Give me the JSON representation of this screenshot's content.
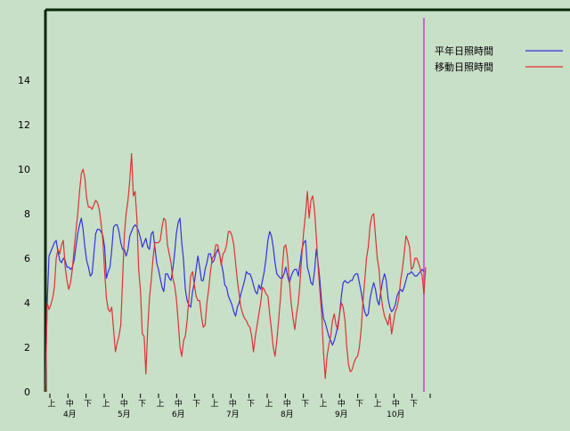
{
  "chart_data": {
    "type": "line",
    "title": "",
    "xlabel": "",
    "ylabel": "",
    "ylim": [
      0,
      16
    ],
    "yticks": [
      0,
      2,
      4,
      6,
      8,
      10,
      12,
      14
    ],
    "grid": false,
    "legend_position": "top-right",
    "xtick_labels": [
      "上",
      "中",
      "下",
      "上",
      "中",
      "下",
      "上",
      "中",
      "下",
      "上",
      "中",
      "下",
      "上",
      "中",
      "下",
      "上",
      "中",
      "下",
      "上",
      "中",
      "下"
    ],
    "month_labels": [
      "4月",
      "5月",
      "6月",
      "7月",
      "8月",
      "9月",
      "10月"
    ],
    "marker_day": 211,
    "marker_color": "#cc66cc",
    "x_count": 213,
    "series": [
      {
        "name": "平年日照時間",
        "color": "#3333dd",
        "values": [
          0.3,
          4.0,
          6.1,
          6.3,
          6.5,
          6.7,
          6.8,
          6.3,
          5.9,
          5.8,
          6.0,
          5.9,
          5.6,
          5.6,
          5.5,
          5.6,
          5.9,
          6.5,
          7.1,
          7.5,
          7.8,
          7.3,
          6.5,
          5.9,
          5.6,
          5.2,
          5.3,
          6.2,
          7.1,
          7.3,
          7.3,
          7.2,
          7.0,
          6.5,
          5.1,
          5.4,
          5.6,
          6.4,
          7.4,
          7.5,
          7.5,
          7.2,
          6.7,
          6.4,
          6.4,
          6.1,
          6.4,
          7.0,
          7.2,
          7.4,
          7.5,
          7.4,
          7.2,
          6.9,
          6.5,
          6.7,
          6.9,
          6.5,
          6.4,
          7.1,
          7.2,
          6.5,
          5.8,
          5.5,
          5.1,
          4.7,
          4.5,
          5.3,
          5.3,
          5.1,
          5.0,
          5.5,
          6.2,
          7.1,
          7.6,
          7.8,
          6.7,
          5.9,
          4.6,
          4.1,
          3.9,
          3.8,
          4.5,
          4.9,
          5.5,
          6.1,
          5.6,
          5.0,
          5.0,
          5.5,
          5.8,
          6.2,
          6.2,
          5.8,
          5.9,
          6.2,
          6.4,
          6.2,
          5.8,
          5.4,
          4.8,
          4.7,
          4.3,
          4.1,
          3.9,
          3.6,
          3.4,
          3.8,
          4.0,
          4.4,
          4.7,
          5.0,
          5.4,
          5.3,
          5.3,
          5.1,
          4.8,
          4.5,
          4.4,
          4.8,
          4.6,
          5.0,
          5.4,
          6.0,
          6.8,
          7.2,
          7.0,
          6.5,
          5.8,
          5.3,
          5.2,
          5.1,
          5.1,
          5.3,
          5.6,
          5.2,
          4.9,
          5.2,
          5.4,
          5.5,
          5.5,
          5.2,
          5.8,
          6.4,
          6.7,
          6.8,
          5.6,
          5.3,
          4.9,
          4.8,
          5.4,
          6.4,
          5.8,
          5.0,
          4.0,
          3.3,
          3.1,
          2.8,
          2.5,
          2.3,
          2.1,
          2.3,
          2.6,
          3.0,
          3.5,
          4.3,
          4.9,
          5.0,
          4.9,
          4.9,
          5.0,
          5.0,
          5.2,
          5.3,
          5.3,
          4.9,
          4.5,
          4.0,
          3.6,
          3.4,
          3.5,
          4.2,
          4.6,
          4.9,
          4.6,
          4.1,
          3.9,
          4.5,
          5.0,
          5.3,
          5.0,
          4.2,
          3.8,
          3.6,
          3.7,
          3.9,
          4.3,
          4.5,
          4.6,
          4.5,
          4.7,
          5.0,
          5.3,
          5.3,
          5.4,
          5.3,
          5.2,
          5.2,
          5.3,
          5.4,
          5.5,
          5.4
        ]
      },
      {
        "name": "移動日照時間",
        "color": "#dd3333",
        "values": [
          0.0,
          4.0,
          3.7,
          3.9,
          4.2,
          4.7,
          6.0,
          6.4,
          6.2,
          6.6,
          6.8,
          5.6,
          5.0,
          4.6,
          4.9,
          5.5,
          6.4,
          7.2,
          8.0,
          9.0,
          9.8,
          10.0,
          9.6,
          8.7,
          8.3,
          8.3,
          8.2,
          8.4,
          8.6,
          8.5,
          8.2,
          7.6,
          6.8,
          5.4,
          4.2,
          3.7,
          3.6,
          3.8,
          2.8,
          1.8,
          2.2,
          2.5,
          3.0,
          5.0,
          7.0,
          8.0,
          8.6,
          9.5,
          10.7,
          8.8,
          9.0,
          7.8,
          5.5,
          4.5,
          2.6,
          2.5,
          0.8,
          2.8,
          4.2,
          5.0,
          6.0,
          6.7,
          6.7,
          6.7,
          6.8,
          7.4,
          7.8,
          7.7,
          6.6,
          6.2,
          5.8,
          5.1,
          4.8,
          4.2,
          3.2,
          2.0,
          1.6,
          2.3,
          2.5,
          3.2,
          4.2,
          5.2,
          5.4,
          4.8,
          4.3,
          4.1,
          4.1,
          3.4,
          2.9,
          3.0,
          4.0,
          4.6,
          5.4,
          6.0,
          6.1,
          6.6,
          6.6,
          6.2,
          5.7,
          6.2,
          6.3,
          6.6,
          7.2,
          7.2,
          7.0,
          6.6,
          5.8,
          5.0,
          4.4,
          3.8,
          3.5,
          3.3,
          3.2,
          3.0,
          2.9,
          2.5,
          1.8,
          2.5,
          3.0,
          3.5,
          4.0,
          4.7,
          4.6,
          4.4,
          4.3,
          3.5,
          2.8,
          2.0,
          1.6,
          2.3,
          3.2,
          4.2,
          5.5,
          6.5,
          6.6,
          6.0,
          5.0,
          4.0,
          3.3,
          2.8,
          3.5,
          4.0,
          5.0,
          6.2,
          7.2,
          8.0,
          9.0,
          7.8,
          8.6,
          8.8,
          8.2,
          7.0,
          5.6,
          4.5,
          3.5,
          1.8,
          0.6,
          1.6,
          2.1,
          2.5,
          3.2,
          3.5,
          3.0,
          2.8,
          3.5,
          4.0,
          3.8,
          3.2,
          2.0,
          1.2,
          0.9,
          1.0,
          1.3,
          1.5,
          1.6,
          2.0,
          2.8,
          4.0,
          5.0,
          6.0,
          6.5,
          7.5,
          7.9,
          8.0,
          7.0,
          6.0,
          5.5,
          4.4,
          3.8,
          3.4,
          3.2,
          3.0,
          3.5,
          2.6,
          3.1,
          3.6,
          3.8,
          4.2,
          5.0,
          5.5,
          6.2,
          7.0,
          6.8,
          6.5,
          5.5,
          5.6,
          6.0,
          6.0,
          5.8,
          5.5,
          5.2,
          4.4,
          5.6
        ]
      }
    ]
  }
}
